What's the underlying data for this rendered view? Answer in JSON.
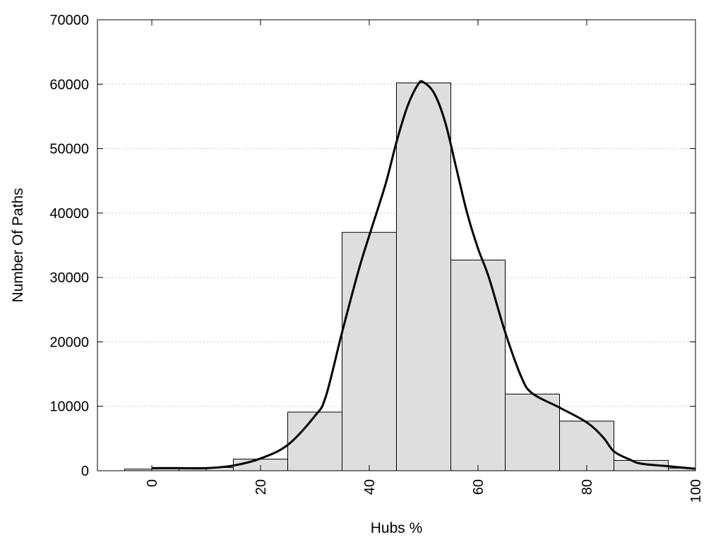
{
  "chart_data": {
    "type": "bar",
    "title": "",
    "xlabel": "Hubs %",
    "ylabel": "Number Of Paths",
    "xlim": [
      -10,
      100
    ],
    "ylim": [
      0,
      70000
    ],
    "xticks": [
      0,
      20,
      40,
      60,
      80,
      100
    ],
    "xtick_labels": [
      "0",
      "20",
      "40",
      "60",
      "80",
      "100"
    ],
    "yticks": [
      0,
      10000,
      20000,
      30000,
      40000,
      50000,
      60000,
      70000
    ],
    "ytick_labels": [
      "0",
      "10000",
      "20000",
      "30000",
      "40000",
      "50000",
      "60000",
      "70000"
    ],
    "grid": {
      "y": true,
      "x": false,
      "style": "dotted"
    },
    "bar_color": "#dedede",
    "line_color": "#000000",
    "bars": [
      {
        "x0": -5,
        "x1": 0,
        "value": 250
      },
      {
        "x0": 0,
        "x1": 5,
        "value": 500
      },
      {
        "x0": 5,
        "x1": 10,
        "value": 500
      },
      {
        "x0": 10,
        "x1": 15,
        "value": 500
      },
      {
        "x0": 15,
        "x1": 25,
        "value": 1800
      },
      {
        "x0": 25,
        "x1": 35,
        "value": 9100
      },
      {
        "x0": 35,
        "x1": 45,
        "value": 37000
      },
      {
        "x0": 45,
        "x1": 55,
        "value": 60200
      },
      {
        "x0": 55,
        "x1": 65,
        "value": 32700
      },
      {
        "x0": 65,
        "x1": 75,
        "value": 11900
      },
      {
        "x0": 75,
        "x1": 85,
        "value": 7700
      },
      {
        "x0": 85,
        "x1": 95,
        "value": 1600
      },
      {
        "x0": 95,
        "x1": 100,
        "value": 400
      }
    ],
    "density_curve": {
      "x": [
        0,
        5,
        10,
        15,
        20,
        25,
        30,
        32,
        35,
        38,
        40,
        43,
        45,
        47,
        49,
        50,
        52,
        54,
        56,
        58,
        60,
        62,
        65,
        68,
        70,
        75,
        80,
        83,
        85,
        88,
        90,
        95,
        100
      ],
      "y": [
        400,
        400,
        400,
        800,
        1900,
        4000,
        8500,
        11500,
        21500,
        31000,
        36500,
        44500,
        51000,
        56500,
        60000,
        60300,
        58500,
        54000,
        47000,
        40000,
        34500,
        30000,
        21500,
        14500,
        12000,
        9800,
        7500,
        5200,
        3000,
        1700,
        1100,
        700,
        300
      ]
    }
  }
}
